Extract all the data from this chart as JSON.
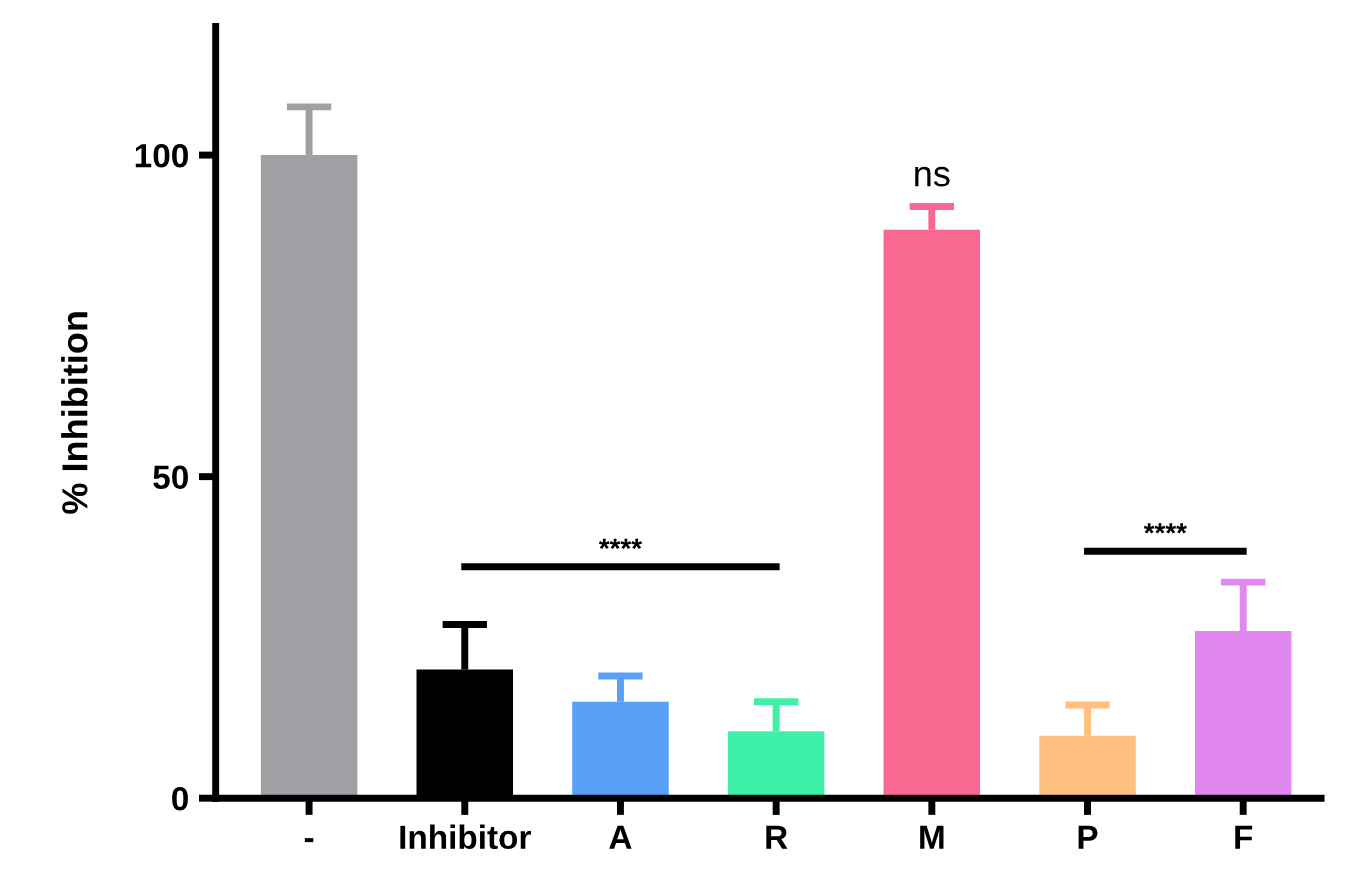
{
  "chart_data": {
    "type": "bar",
    "ylabel": "% Inhibition",
    "categories": [
      "-",
      "Inhibitor",
      "A",
      "R",
      "M",
      "P",
      "F"
    ],
    "values": [
      100,
      20,
      15,
      10.4,
      88.4,
      9.7,
      26
    ],
    "colors": [
      "#a0a0a4",
      "#000000",
      "#58a0f8",
      "#3ef0a8",
      "#f86890",
      "#ffc080",
      "#e088f0"
    ],
    "errors": [
      [
        100,
        107.5
      ],
      [
        20,
        27
      ],
      [
        15,
        19
      ],
      [
        10.4,
        15
      ],
      [
        88.4,
        92
      ],
      [
        9.7,
        14.5
      ],
      [
        26,
        33.6
      ]
    ],
    "value_labels": [
      null,
      null,
      null,
      null,
      "ns",
      null,
      null
    ],
    "annotations": [
      "****",
      "****"
    ],
    "ylim": [
      0,
      120
    ],
    "yticks": [
      0,
      50,
      100
    ],
    "grid": false,
    "legend": false
  }
}
